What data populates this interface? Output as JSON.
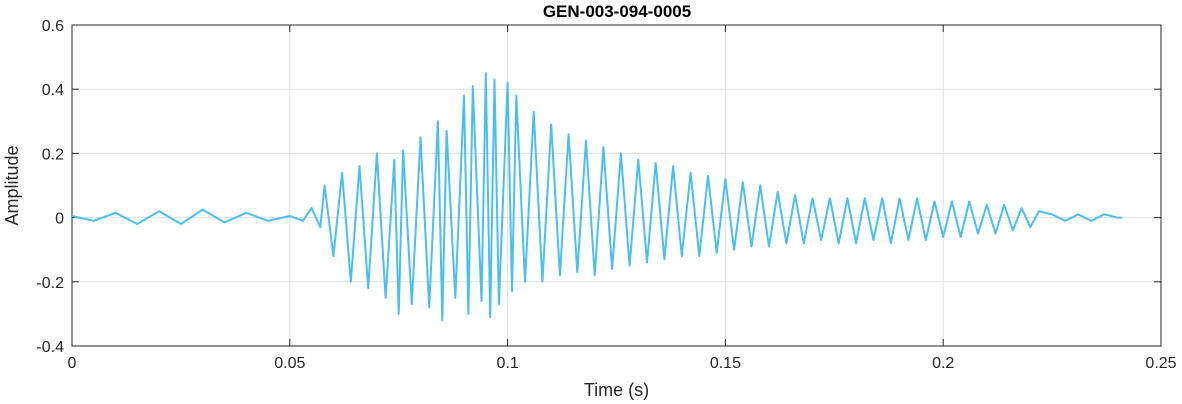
{
  "chart_data": {
    "type": "line",
    "title": "GEN-003-094-0005",
    "xlabel": "Time (s)",
    "ylabel": "Amplitude",
    "xlim": [
      0,
      0.25
    ],
    "ylim": [
      -0.4,
      0.6
    ],
    "xticks": [
      0,
      0.05,
      0.1,
      0.15,
      0.2,
      0.25
    ],
    "xtick_labels": [
      "0",
      "0.05",
      "0.1",
      "0.15",
      "0.2",
      "0.25"
    ],
    "yticks": [
      -0.4,
      -0.2,
      0,
      0.2,
      0.4,
      0.6
    ],
    "ytick_labels": [
      "-0.4",
      "-0.2",
      "0",
      "0.2",
      "0.4",
      "0.6"
    ],
    "grid": true,
    "box": true,
    "line_color": "#4DBEEE",
    "series": [
      {
        "x": [
          0,
          0.005,
          0.01,
          0.015,
          0.02,
          0.025,
          0.03,
          0.035,
          0.04,
          0.045,
          0.05,
          0.053,
          0.055,
          0.057,
          0.058,
          0.06,
          0.062,
          0.064,
          0.066,
          0.068,
          0.07,
          0.072,
          0.074,
          0.075,
          0.076,
          0.078,
          0.08,
          0.082,
          0.084,
          0.085,
          0.086,
          0.088,
          0.09,
          0.091,
          0.092,
          0.094,
          0.095,
          0.096,
          0.097,
          0.098,
          0.1,
          0.101,
          0.102,
          0.104,
          0.106,
          0.108,
          0.11,
          0.112,
          0.114,
          0.116,
          0.118,
          0.12,
          0.122,
          0.124,
          0.126,
          0.128,
          0.13,
          0.132,
          0.134,
          0.136,
          0.138,
          0.14,
          0.142,
          0.144,
          0.146,
          0.148,
          0.15,
          0.152,
          0.154,
          0.156,
          0.158,
          0.16,
          0.162,
          0.164,
          0.166,
          0.168,
          0.17,
          0.172,
          0.174,
          0.176,
          0.178,
          0.18,
          0.182,
          0.184,
          0.186,
          0.188,
          0.19,
          0.192,
          0.194,
          0.196,
          0.198,
          0.2,
          0.202,
          0.204,
          0.206,
          0.208,
          0.21,
          0.212,
          0.214,
          0.216,
          0.218,
          0.22,
          0.222,
          0.225,
          0.228,
          0.231,
          0.234,
          0.237,
          0.24,
          0.241
        ],
        "y": [
          0.005,
          -0.01,
          0.015,
          -0.02,
          0.02,
          -0.02,
          0.025,
          -0.015,
          0.015,
          -0.01,
          0.005,
          -0.01,
          0.03,
          -0.03,
          0.1,
          -0.12,
          0.14,
          -0.2,
          0.16,
          -0.22,
          0.2,
          -0.25,
          0.18,
          -0.3,
          0.21,
          -0.27,
          0.25,
          -0.28,
          0.3,
          -0.32,
          0.27,
          -0.25,
          0.38,
          -0.3,
          0.41,
          -0.26,
          0.45,
          -0.31,
          0.43,
          -0.27,
          0.42,
          -0.23,
          0.38,
          -0.2,
          0.33,
          -0.2,
          0.29,
          -0.18,
          0.26,
          -0.17,
          0.24,
          -0.18,
          0.22,
          -0.16,
          0.2,
          -0.15,
          0.18,
          -0.14,
          0.17,
          -0.13,
          0.16,
          -0.12,
          0.14,
          -0.12,
          0.13,
          -0.11,
          0.12,
          -0.1,
          0.11,
          -0.09,
          0.1,
          -0.09,
          0.08,
          -0.08,
          0.07,
          -0.08,
          0.06,
          -0.07,
          0.06,
          -0.08,
          0.06,
          -0.08,
          0.06,
          -0.07,
          0.06,
          -0.08,
          0.06,
          -0.07,
          0.06,
          -0.07,
          0.05,
          -0.06,
          0.05,
          -0.06,
          0.05,
          -0.05,
          0.04,
          -0.05,
          0.04,
          -0.04,
          0.03,
          -0.03,
          0.02,
          0.01,
          -0.01,
          0.01,
          -0.01,
          0.01,
          0.0,
          0.0
        ]
      }
    ]
  }
}
